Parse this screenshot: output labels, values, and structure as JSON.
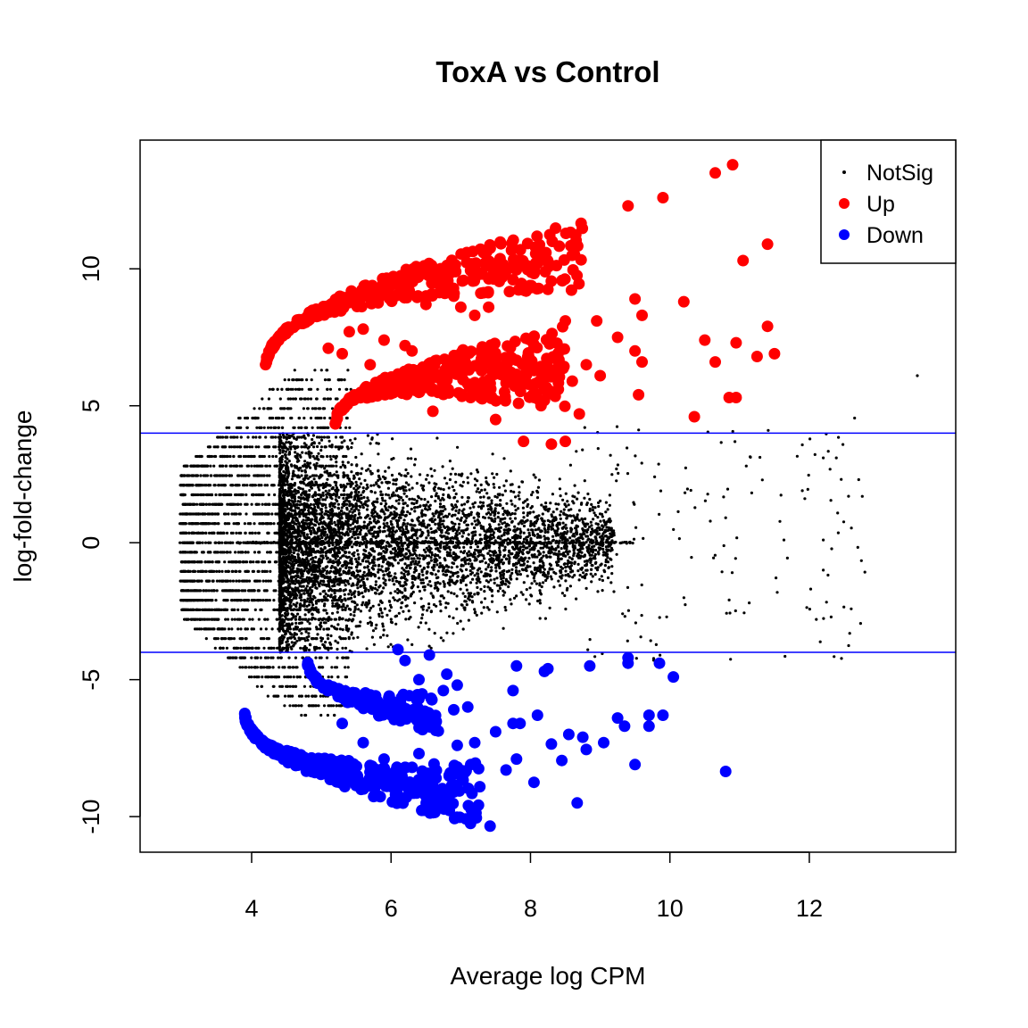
{
  "chart_data": {
    "type": "scatter",
    "title": "ToxA vs Control",
    "xlabel": "Average log CPM",
    "ylabel": "log-fold-change",
    "xlim": [
      2.4,
      14.1
    ],
    "ylim": [
      -11.3,
      14.7
    ],
    "xticks": [
      "4",
      "6",
      "8",
      "10",
      "12"
    ],
    "yticks": [
      "-10",
      "-5",
      "0",
      "5",
      "10"
    ],
    "hlines": [
      4,
      -4
    ],
    "hline_color": "#0000ff",
    "legend": {
      "position": "top-right",
      "entries": [
        {
          "label": "NotSig",
          "color": "#000000"
        },
        {
          "label": "Up",
          "color": "#ff0000"
        },
        {
          "label": "Down",
          "color": "#0000ff"
        }
      ]
    },
    "series": [
      {
        "name": "Up",
        "color": "#ff0000",
        "points": [
          [
            10.65,
            13.5
          ],
          [
            10.9,
            13.8
          ],
          [
            9.9,
            12.6
          ],
          [
            9.4,
            12.3
          ],
          [
            11.05,
            10.3
          ],
          [
            11.4,
            10.9
          ],
          [
            9.5,
            8.9
          ],
          [
            9.6,
            8.3
          ],
          [
            10.2,
            8.8
          ],
          [
            8.95,
            8.1
          ],
          [
            8.5,
            8.1
          ],
          [
            7.4,
            8.6
          ],
          [
            7.0,
            8.6
          ],
          [
            6.5,
            8.7
          ],
          [
            7.75,
            9.6
          ],
          [
            8.1,
            10.2
          ],
          [
            11.4,
            7.9
          ],
          [
            10.5,
            7.4
          ],
          [
            10.95,
            7.3
          ],
          [
            10.65,
            6.6
          ],
          [
            11.25,
            6.8
          ],
          [
            11.5,
            6.9
          ],
          [
            9.25,
            7.5
          ],
          [
            9.5,
            7.0
          ],
          [
            9.6,
            6.6
          ],
          [
            9.0,
            6.1
          ],
          [
            10.35,
            4.6
          ],
          [
            10.85,
            5.3
          ],
          [
            10.95,
            5.3
          ],
          [
            9.55,
            5.4
          ],
          [
            8.5,
            3.7
          ],
          [
            8.3,
            3.6
          ],
          [
            7.9,
            3.7
          ],
          [
            8.6,
            5.9
          ],
          [
            8.4,
            5.6
          ],
          [
            8.7,
            4.7
          ],
          [
            7.2,
            8.3
          ],
          [
            6.9,
            9.0
          ],
          [
            6.3,
            7.0
          ],
          [
            5.9,
            7.4
          ],
          [
            5.6,
            7.8
          ],
          [
            5.4,
            7.7
          ],
          [
            5.1,
            7.1
          ],
          [
            8.8,
            6.5
          ],
          [
            8.2,
            5.2
          ],
          [
            7.6,
            6.3
          ],
          [
            7.1,
            5.8
          ],
          [
            6.6,
            4.8
          ],
          [
            7.5,
            4.5
          ],
          [
            7.9,
            5.8
          ],
          [
            8.2,
            6.2
          ],
          [
            6.8,
            6.4
          ],
          [
            6.2,
            7.2
          ],
          [
            5.7,
            6.5
          ],
          [
            5.3,
            6.9
          ]
        ]
      },
      {
        "name": "Down",
        "color": "#0000ff",
        "points": [
          [
            7.42,
            -10.35
          ],
          [
            7.15,
            -10.1
          ],
          [
            8.67,
            -9.5
          ],
          [
            10.8,
            -8.35
          ],
          [
            8.05,
            -8.75
          ],
          [
            9.5,
            -8.1
          ],
          [
            6.9,
            -9.1
          ],
          [
            7.65,
            -8.3
          ],
          [
            7.8,
            -7.9
          ],
          [
            8.45,
            -7.95
          ],
          [
            8.8,
            -7.55
          ],
          [
            9.05,
            -7.3
          ],
          [
            8.3,
            -7.35
          ],
          [
            8.55,
            -7.0
          ],
          [
            8.75,
            -7.1
          ],
          [
            9.35,
            -6.7
          ],
          [
            9.7,
            -6.3
          ],
          [
            9.9,
            -6.3
          ],
          [
            9.25,
            -6.4
          ],
          [
            8.1,
            -6.3
          ],
          [
            7.75,
            -6.6
          ],
          [
            7.85,
            -6.6
          ],
          [
            7.5,
            -6.9
          ],
          [
            7.2,
            -7.3
          ],
          [
            6.95,
            -7.4
          ],
          [
            6.55,
            -6.7
          ],
          [
            6.6,
            -6.6
          ],
          [
            6.9,
            -6.1
          ],
          [
            7.1,
            -6.0
          ],
          [
            6.75,
            -5.4
          ],
          [
            6.95,
            -5.2
          ],
          [
            7.75,
            -5.4
          ],
          [
            7.8,
            -4.5
          ],
          [
            8.2,
            -4.7
          ],
          [
            8.25,
            -4.6
          ],
          [
            8.85,
            -4.5
          ],
          [
            9.4,
            -4.2
          ],
          [
            9.4,
            -4.4
          ],
          [
            9.85,
            -4.4
          ],
          [
            10.05,
            -4.9
          ],
          [
            9.7,
            -6.7
          ],
          [
            6.4,
            -5.0
          ],
          [
            6.2,
            -4.3
          ],
          [
            6.1,
            -3.9
          ],
          [
            6.55,
            -4.1
          ],
          [
            6.8,
            -4.8
          ],
          [
            6.4,
            -7.7
          ],
          [
            6.2,
            -8.2
          ],
          [
            5.9,
            -7.9
          ],
          [
            5.6,
            -7.3
          ],
          [
            5.3,
            -6.6
          ],
          [
            5.1,
            -5.2
          ]
        ]
      }
    ]
  }
}
